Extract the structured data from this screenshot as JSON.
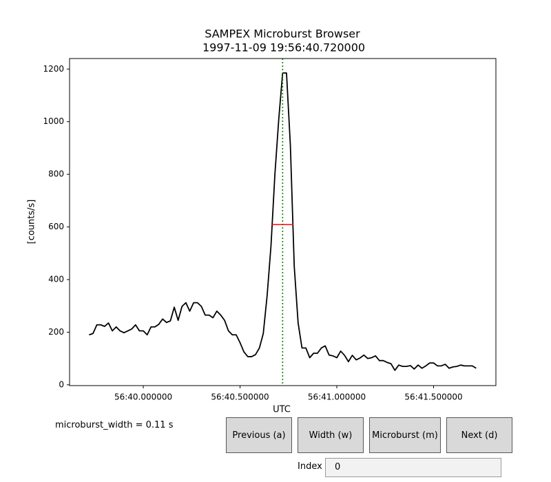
{
  "chart_data": {
    "type": "line",
    "title": "SAMPEX Microburst Browser",
    "subtitle": "1997-11-09 19:56:40.720000",
    "xlabel": "UTC",
    "ylabel": "[counts/s]",
    "color": "#000000",
    "x": [
      39.72,
      39.74,
      39.76,
      39.78,
      39.8,
      39.82,
      39.84,
      39.86,
      39.88,
      39.9,
      39.92,
      39.94,
      39.96,
      39.98,
      40,
      40.02,
      40.04,
      40.06,
      40.08,
      40.1,
      40.12,
      40.14,
      40.16,
      40.18,
      40.2,
      40.22,
      40.24,
      40.26,
      40.28,
      40.3,
      40.32,
      40.34,
      40.36,
      40.38,
      40.4,
      40.42,
      40.44,
      40.46,
      40.48,
      40.5,
      40.52,
      40.54,
      40.56,
      40.58,
      40.6,
      40.62,
      40.64,
      40.66,
      40.68,
      40.7,
      40.72,
      40.74,
      40.76,
      40.78,
      40.8,
      40.82,
      40.84,
      40.86,
      40.88,
      40.9,
      40.92,
      40.94,
      40.96,
      40.98,
      41,
      41.02,
      41.04,
      41.06,
      41.08,
      41.1,
      41.12,
      41.14,
      41.16,
      41.18,
      41.2,
      41.22,
      41.24,
      41.26,
      41.28,
      41.3,
      41.32,
      41.34,
      41.36,
      41.38,
      41.4,
      41.42,
      41.44,
      41.46,
      41.48,
      41.5,
      41.52,
      41.54,
      41.56,
      41.58,
      41.6,
      41.62,
      41.64,
      41.66,
      41.68,
      41.7,
      41.72
    ],
    "values": [
      190,
      195,
      228,
      228,
      222,
      235,
      205,
      220,
      205,
      198,
      205,
      212,
      228,
      205,
      205,
      190,
      220,
      220,
      230,
      250,
      237,
      243,
      295,
      245,
      298,
      312,
      280,
      312,
      312,
      298,
      265,
      265,
      255,
      280,
      265,
      245,
      205,
      190,
      190,
      160,
      125,
      107,
      107,
      115,
      140,
      195,
      340,
      530,
      800,
      1010,
      1185,
      1185,
      910,
      450,
      235,
      140,
      140,
      103,
      120,
      120,
      140,
      148,
      113,
      110,
      103,
      128,
      112,
      88,
      112,
      95,
      102,
      113,
      100,
      103,
      110,
      92,
      92,
      85,
      80,
      55,
      75,
      70,
      70,
      73,
      60,
      75,
      63,
      72,
      83,
      83,
      72,
      72,
      78,
      63,
      68,
      70,
      75,
      72,
      72,
      72,
      63
    ],
    "xlim": [
      39.619,
      41.822
    ],
    "ylim": [
      -3,
      1240
    ],
    "xticks": [
      {
        "value": 40,
        "label": "56:40.000000"
      },
      {
        "value": 40.5,
        "label": "56:40.500000"
      },
      {
        "value": 41,
        "label": "56:41.000000"
      },
      {
        "value": 41.5,
        "label": "56:41.500000"
      }
    ],
    "yticks": [
      0,
      200,
      400,
      600,
      800,
      1000,
      1200
    ],
    "vline": {
      "x": 40.72,
      "color": "#008000"
    },
    "width_line": {
      "xmin": 40.662,
      "xmax": 40.776,
      "y": 609,
      "color": "#ff0000"
    }
  },
  "controls": {
    "width_text": "microburst_width = 0.11 s",
    "buttons": [
      "Previous (a)",
      "Width (w)",
      "Microburst (m)",
      "Next (d)"
    ],
    "index_label": "Index",
    "index_value": "0"
  }
}
